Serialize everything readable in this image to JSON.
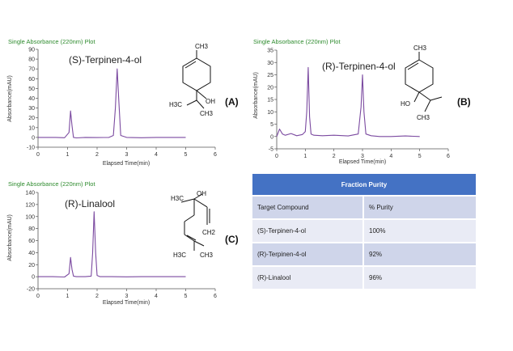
{
  "chart_data": [
    {
      "type": "line",
      "panel": "(A)",
      "title": "Single Absorbance (220nm) Plot",
      "xlabel": "Elapsed Time(min)",
      "ylabel": "Absorbance(mAU)",
      "xlim": [
        0,
        6
      ],
      "ylim": [
        -10,
        90
      ],
      "xticks": [
        0,
        1,
        2,
        3,
        4,
        5,
        6
      ],
      "yticks": [
        -10,
        0,
        10,
        20,
        30,
        40,
        50,
        60,
        70,
        80,
        90
      ],
      "grid": false,
      "trace_color": "#7b4aa0",
      "compound": "(S)-Terpinen-4-ol",
      "structure_labels": [
        "CH3",
        "H3C",
        "CH3",
        "OH"
      ],
      "series": [
        {
          "x": [
            0,
            0.3,
            0.6,
            0.9,
            1.05,
            1.1,
            1.15,
            1.2,
            1.3,
            1.6,
            2.0,
            2.4,
            2.55,
            2.62,
            2.68,
            2.74,
            2.8,
            3.0,
            3.5,
            4.0,
            4.5,
            5.0
          ],
          "y": [
            0,
            0,
            0,
            -0.3,
            5,
            27,
            12,
            0,
            -0.5,
            0,
            -0.2,
            0,
            2,
            30,
            70,
            35,
            2,
            0,
            -0.3,
            0,
            0,
            0
          ]
        }
      ]
    },
    {
      "type": "line",
      "panel": "(B)",
      "title": "Single Absorbance (220nm) Plot",
      "xlabel": "Elapsed Time(min)",
      "ylabel": "Absorbance(mAU)",
      "xlim": [
        0,
        6
      ],
      "ylim": [
        -5,
        35
      ],
      "xticks": [
        0,
        1,
        2,
        3,
        4,
        5,
        6
      ],
      "yticks": [
        -5,
        0,
        5,
        10,
        15,
        20,
        25,
        30,
        35
      ],
      "grid": false,
      "trace_color": "#7b4aa0",
      "compound": "(R)-Terpinen-4-ol",
      "structure_labels": [
        "CH3",
        "HO",
        "CH3"
      ],
      "series": [
        {
          "x": [
            0,
            0.1,
            0.2,
            0.3,
            0.5,
            0.7,
            0.9,
            1.0,
            1.05,
            1.1,
            1.15,
            1.2,
            1.3,
            1.6,
            2.0,
            2.5,
            2.85,
            2.95,
            3.0,
            3.05,
            3.12,
            3.3,
            3.6,
            4.0,
            4.5,
            5.0
          ],
          "y": [
            0,
            3,
            1,
            0.5,
            1.2,
            0.3,
            0.8,
            2,
            10,
            28,
            8,
            1,
            0.5,
            0.3,
            0.5,
            0.2,
            1,
            12,
            25,
            10,
            1,
            0.3,
            0,
            0,
            0.2,
            0
          ]
        }
      ]
    },
    {
      "type": "line",
      "panel": "(C)",
      "title": "Single Absorbance (220nm) Plot",
      "xlabel": "Elapsed Time(min)",
      "ylabel": "Absorbance(mAU)",
      "xlim": [
        0,
        6
      ],
      "ylim": [
        -20,
        140
      ],
      "xticks": [
        0,
        1,
        2,
        3,
        4,
        5,
        6
      ],
      "yticks": [
        -20,
        0,
        20,
        40,
        60,
        80,
        100,
        120,
        140
      ],
      "grid": false,
      "trace_color": "#7b4aa0",
      "compound": "(R)-Linalool",
      "structure_labels": [
        "H3C",
        "OH",
        "CH2",
        "H3C",
        "CH3"
      ],
      "series": [
        {
          "x": [
            0,
            0.5,
            0.9,
            1.05,
            1.1,
            1.15,
            1.2,
            1.3,
            1.6,
            1.8,
            1.85,
            1.9,
            1.95,
            2.0,
            2.1,
            2.5,
            3.0,
            3.5,
            4.0,
            4.5,
            5.0
          ],
          "y": [
            0,
            0,
            -0.5,
            5,
            32,
            12,
            1,
            0,
            0,
            1,
            40,
            108,
            40,
            2,
            0,
            0,
            -0.3,
            0,
            0,
            0,
            0
          ]
        }
      ]
    }
  ],
  "table": {
    "title": "Fraction Purity",
    "header_color": "#4472c4",
    "headers": [
      "Target Compound",
      "% Purity"
    ],
    "rows": [
      [
        "(S)-Terpinen-4-ol",
        "100%"
      ],
      [
        "(R)-Terpinen-4-ol",
        "92%"
      ],
      [
        "(R)-Linalool",
        "96%"
      ]
    ]
  }
}
